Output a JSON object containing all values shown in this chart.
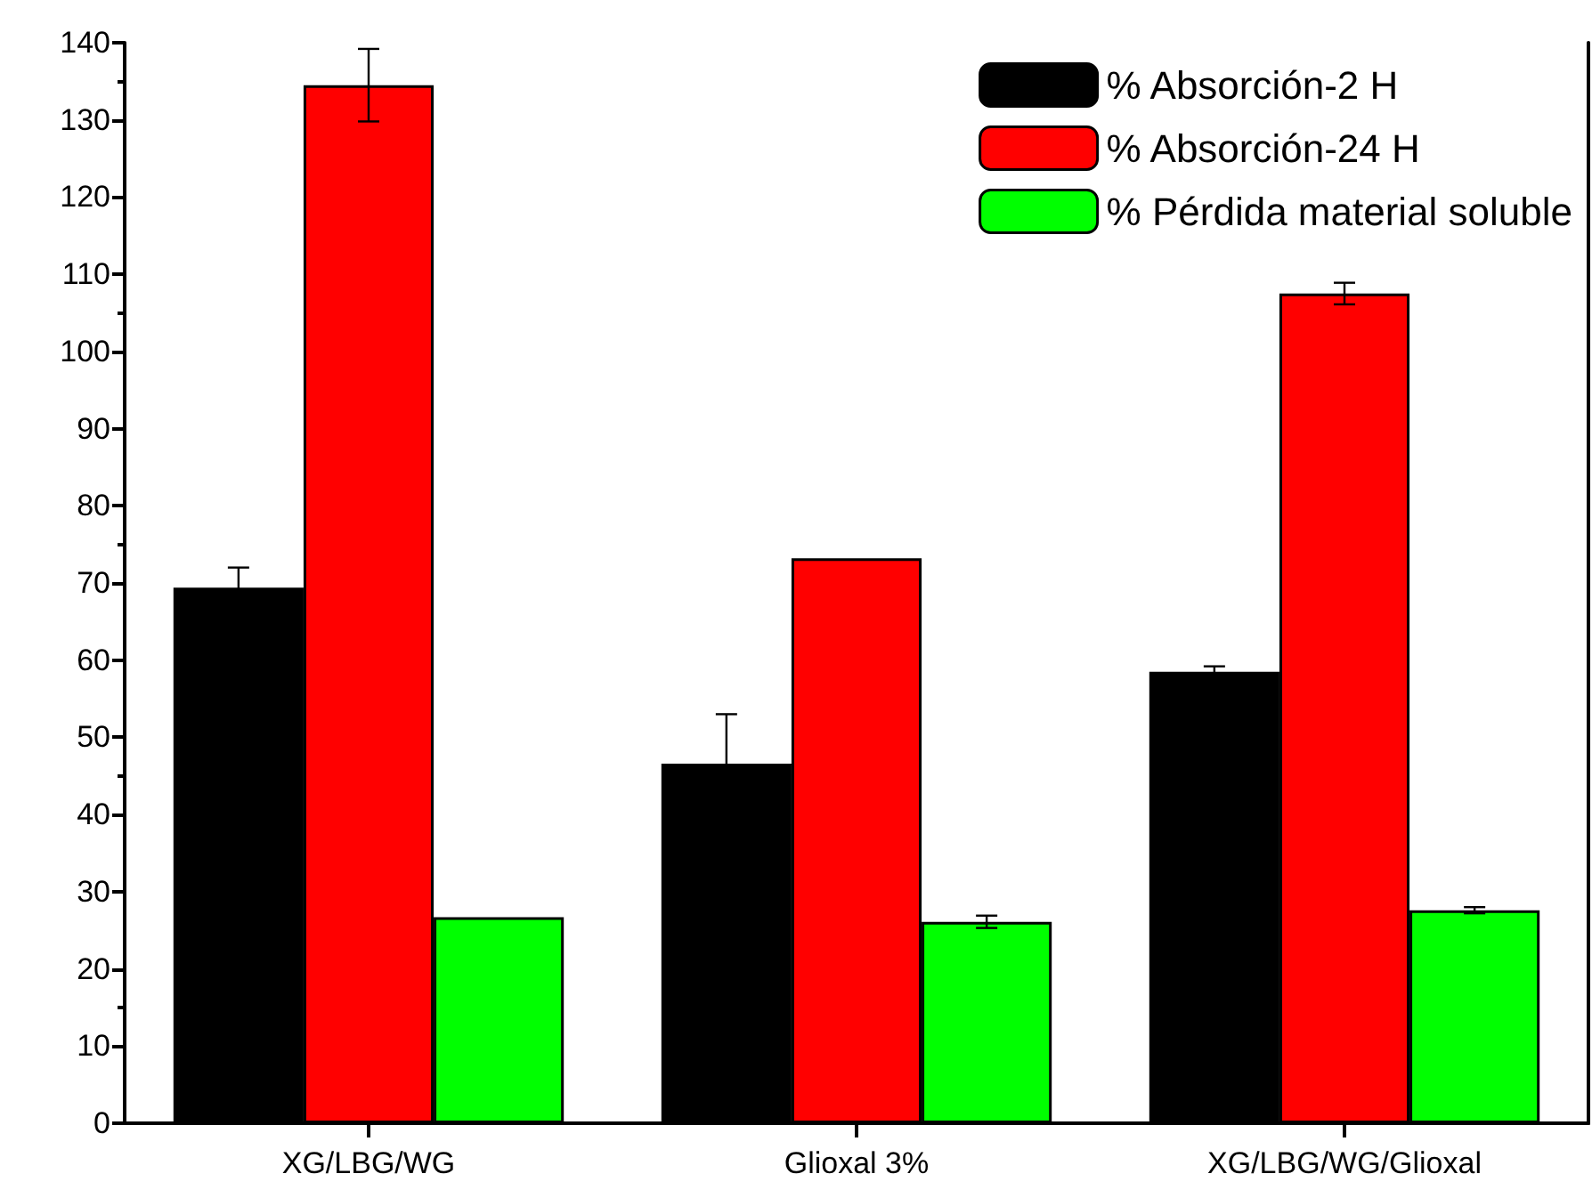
{
  "chart_data": {
    "type": "bar",
    "categories": [
      "XG/LBG/WG",
      "Glioxal 3%",
      "XG/LBG/WG/Glioxal"
    ],
    "series": [
      {
        "name": "% Absorción-2 H",
        "color": "#000000",
        "values": [
          69.4,
          46.6,
          58.5
        ],
        "errors": [
          2.6,
          6.4,
          0.7
        ]
      },
      {
        "name": "% Absorción-24 H",
        "color": "#ff0000",
        "values": [
          134.5,
          73.2,
          107.5
        ],
        "errors": [
          4.7,
          null,
          1.4
        ]
      },
      {
        "name": "% Pérdida material soluble",
        "color": "#00ff00",
        "values": [
          26.7,
          26.1,
          27.6
        ],
        "errors": [
          null,
          0.8,
          0.4
        ]
      }
    ],
    "ylim": [
      0,
      140
    ],
    "yticks": [
      0,
      10,
      20,
      30,
      40,
      50,
      60,
      70,
      80,
      90,
      100,
      110,
      120,
      130,
      140
    ],
    "grid": false,
    "legend": "top right"
  }
}
